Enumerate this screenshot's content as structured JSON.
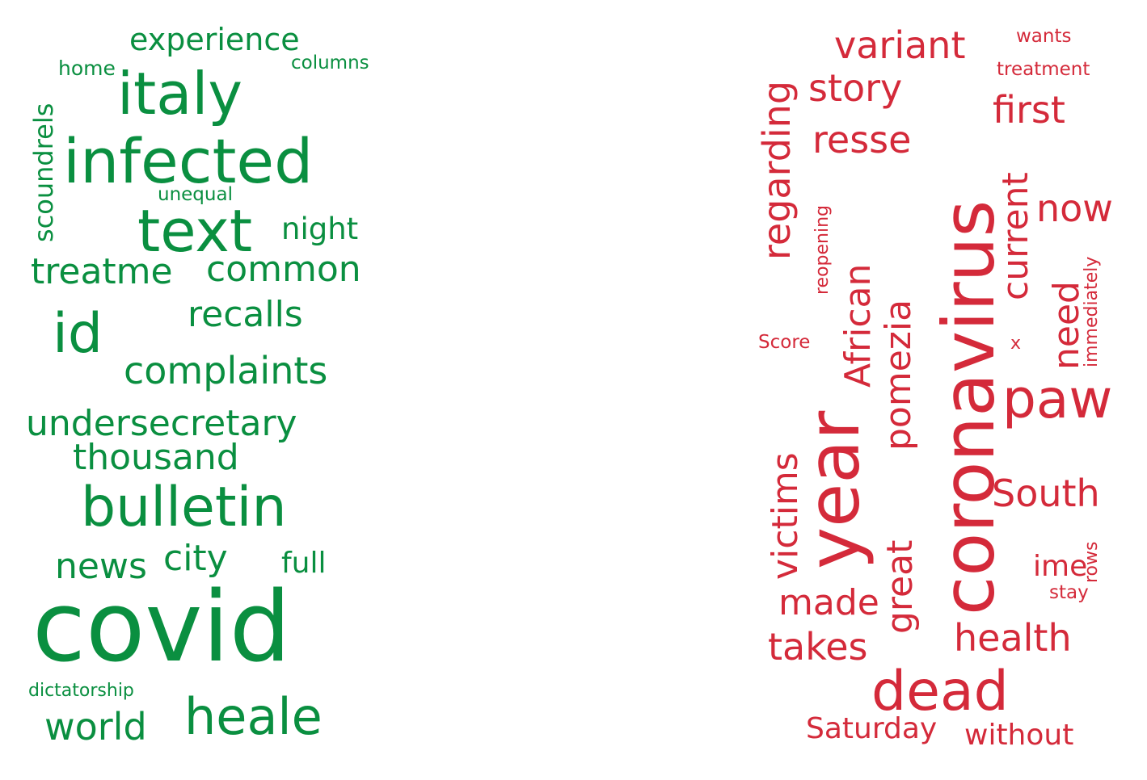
{
  "colors": {
    "left": "#0a8f40",
    "right": "#d42a3a",
    "background": "#ffffff"
  },
  "left_words": [
    "experience",
    "columns",
    "home",
    "italy",
    "scoundrels",
    "infected",
    "unequal",
    "text",
    "night",
    "treatme",
    "common",
    "recalls",
    "id",
    "complaints",
    "undersecretary",
    "thousand",
    "bulletin",
    "news",
    "city",
    "full",
    "covid",
    "dictatorship",
    "world",
    "heale"
  ],
  "right_words": [
    "variant",
    "wants",
    "regarding",
    "treatment",
    "story",
    "first",
    "coronavirus",
    "resse",
    "now",
    "current",
    "reopening",
    "African",
    "immediately",
    "need",
    "pomezia",
    "Score",
    "x",
    "paw",
    "year",
    "victims",
    "South",
    "great",
    "ime",
    "rows",
    "made",
    "stay",
    "health",
    "takes",
    "dead",
    "Saturday",
    "without"
  ]
}
